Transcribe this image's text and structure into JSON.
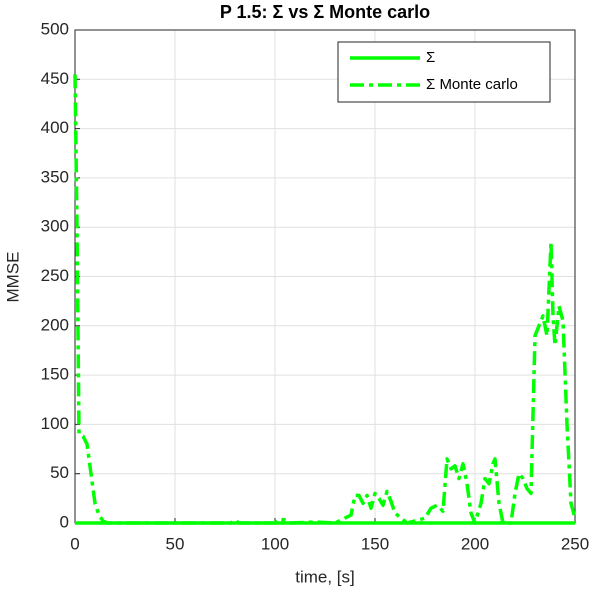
{
  "chart_data": {
    "type": "line",
    "title": "P 1.5: Σ vs Σ Monte carlo",
    "xlabel": "time, [s]",
    "ylabel": "MMSE",
    "xlim": [
      0,
      250
    ],
    "ylim": [
      0,
      500
    ],
    "xticks": [
      0,
      50,
      100,
      150,
      200,
      250
    ],
    "yticks": [
      0,
      50,
      100,
      150,
      200,
      250,
      300,
      350,
      400,
      450,
      500
    ],
    "grid": true,
    "legend": "northeast",
    "series": [
      {
        "name": "Σ",
        "color": "#00ff00",
        "style": "solid",
        "x": [
          0,
          50,
          100,
          150,
          200,
          250
        ],
        "values": [
          0,
          0,
          0,
          0,
          0,
          0
        ]
      },
      {
        "name": "Σ Monte carlo",
        "color": "#00ff00",
        "style": "dashdot",
        "x": [
          0,
          1,
          2,
          4,
          6,
          8,
          10,
          12,
          14,
          16,
          78,
          80,
          82,
          100,
          102,
          105,
          108,
          120,
          130,
          135,
          138,
          140,
          142,
          144,
          146,
          148,
          150,
          152,
          154,
          156,
          158,
          160,
          163,
          166,
          170,
          175,
          178,
          181,
          184,
          186,
          188,
          190,
          192,
          194,
          196,
          198,
          200,
          203,
          205,
          207,
          209,
          210,
          212,
          214,
          218,
          220,
          222,
          224,
          226,
          228,
          230,
          232,
          234,
          236,
          238,
          239,
          240,
          242,
          244,
          246,
          248,
          250
        ],
        "values": [
          455,
          300,
          90,
          88,
          80,
          50,
          20,
          8,
          2,
          0,
          0,
          3,
          0,
          0,
          4,
          3,
          0,
          1,
          0,
          5,
          8,
          28,
          28,
          20,
          28,
          15,
          30,
          25,
          18,
          32,
          22,
          10,
          5,
          0,
          2,
          5,
          15,
          18,
          12,
          65,
          55,
          58,
          45,
          60,
          40,
          10,
          0,
          20,
          45,
          40,
          60,
          65,
          20,
          0,
          0,
          30,
          50,
          45,
          35,
          30,
          190,
          200,
          210,
          190,
          285,
          210,
          180,
          220,
          205,
          100,
          20,
          5
        ]
      }
    ]
  }
}
